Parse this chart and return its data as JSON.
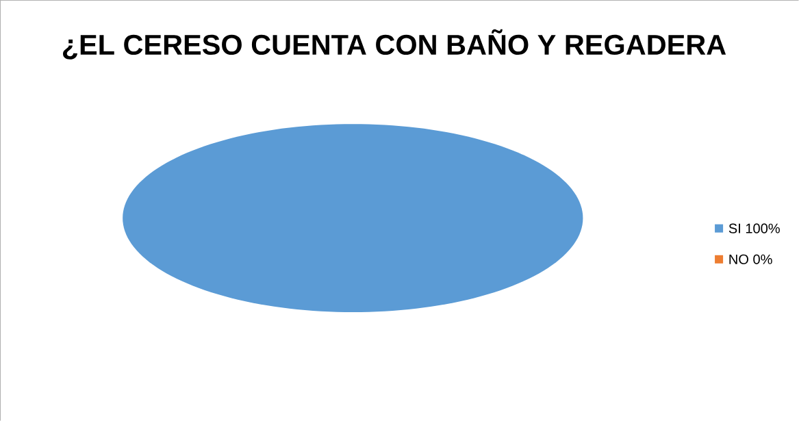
{
  "chart_data": {
    "type": "pie",
    "title": "¿EL CERESO CUENTA CON BAÑO Y REGADERA",
    "categories": [
      "SI 100%",
      "NO 0%"
    ],
    "values": [
      100,
      0
    ],
    "colors": [
      "#5b9bd5",
      "#ed7d31"
    ],
    "legend": "right"
  }
}
